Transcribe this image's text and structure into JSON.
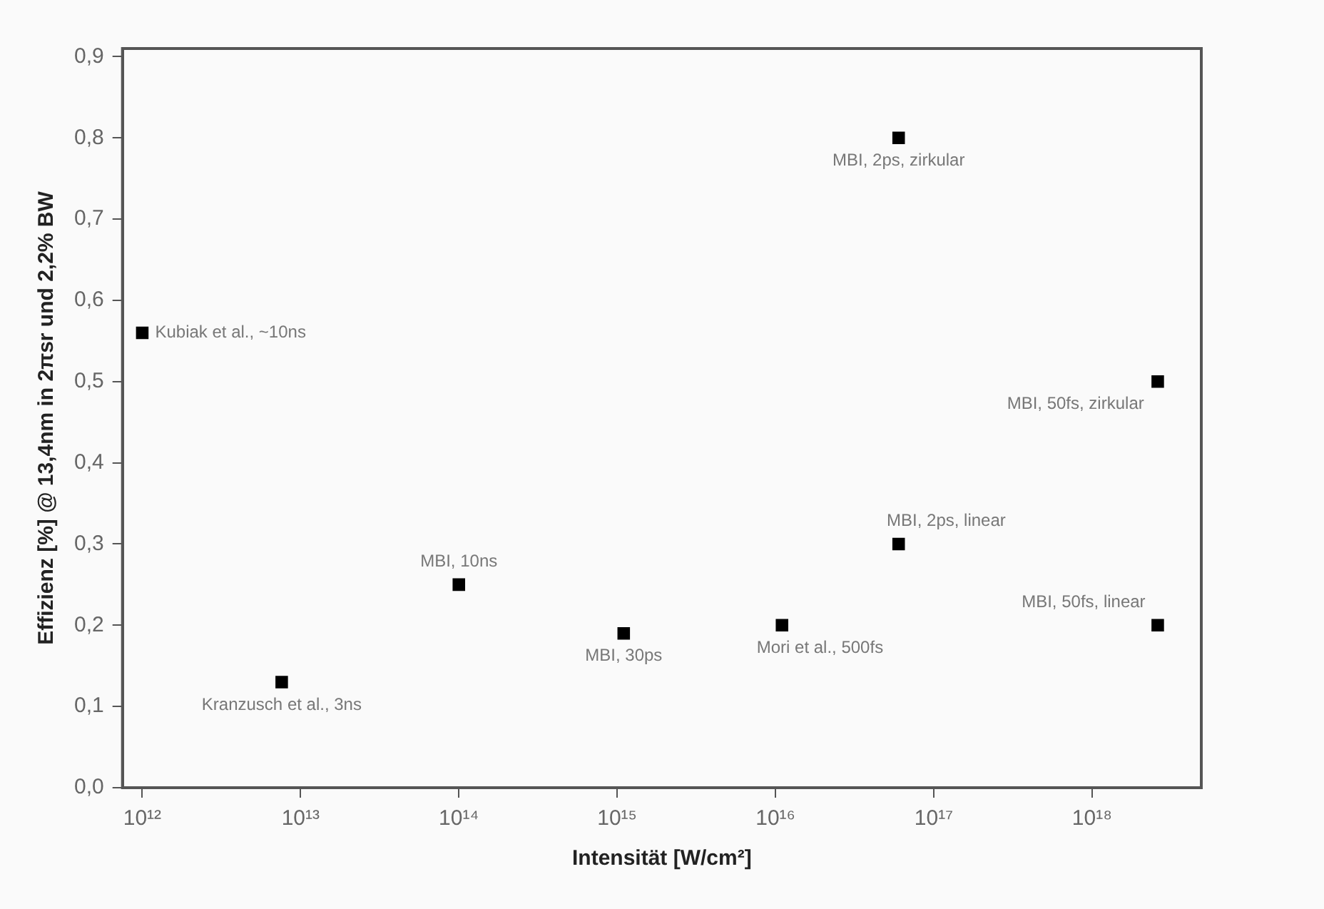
{
  "chart_data": {
    "type": "scatter",
    "xlabel": "Intensität [W/cm²]",
    "ylabel": "Effizienz [%] @ 13,4nm in 2πsr und 2,2% BW",
    "series": [
      {
        "color": "#000000",
        "x": [
          1000000000000.0,
          7600000000000.0,
          100000000000000.0,
          1100000000000000.0,
          1.1e+16,
          6e+16,
          6e+16,
          2.6e+18,
          2.6e+18
        ],
        "values": [
          0.56,
          0.13,
          0.25,
          0.19,
          0.2,
          0.8,
          0.3,
          0.5,
          0.2
        ]
      }
    ],
    "log": "x",
    "xlim": [
      750000000000.0,
      4.9e+18
    ],
    "xticks": [
      {
        "value": 1000000000000.0,
        "label": "10¹²"
      },
      {
        "value": 10000000000000.0,
        "label": "10¹³"
      },
      {
        "value": 100000000000000.0,
        "label": "10¹⁴"
      },
      {
        "value": 1000000000000000.0,
        "label": "10¹⁵"
      },
      {
        "value": 1e+16,
        "label": "10¹⁶"
      },
      {
        "value": 1e+17,
        "label": "10¹⁷"
      },
      {
        "value": 1e+18,
        "label": "10¹⁸"
      }
    ],
    "ylim": [
      0,
      0.91
    ],
    "yticks": [
      {
        "value": 0,
        "label": "0,0"
      },
      {
        "value": 0.1,
        "label": "0,1"
      },
      {
        "value": 0.2,
        "label": "0,2"
      },
      {
        "value": 0.3,
        "label": "0,3"
      },
      {
        "value": 0.4,
        "label": "0,4"
      },
      {
        "value": 0.5,
        "label": "0,5"
      },
      {
        "value": 0.6,
        "label": "0,6"
      },
      {
        "value": 0.7,
        "label": "0,7"
      },
      {
        "value": 0.8,
        "label": "0,8"
      },
      {
        "value": 0.9,
        "label": "0,9"
      }
    ],
    "grid": false,
    "legend": false,
    "marker": "square",
    "annotations": [
      {
        "text": "Kubiak et al., ~10ns",
        "x": 1000000000000.0,
        "y": 0.56
      },
      {
        "text": "Kranzusch et al., 3ns",
        "x": 7600000000000.0,
        "y": 0.13
      },
      {
        "text": "MBI, 10ns",
        "x": 100000000000000.0,
        "y": 0.25
      },
      {
        "text": "MBI, 30ps",
        "x": 1100000000000000.0,
        "y": 0.19
      },
      {
        "text": "Mori et al., 500fs",
        "x": 1.1e+16,
        "y": 0.2
      },
      {
        "text": "MBI, 2ps, zirkular",
        "x": 6e+16,
        "y": 0.8
      },
      {
        "text": "MBI, 50fs, zirkular",
        "x": 2.6e+18,
        "y": 0.5
      },
      {
        "text": "MBI, 2ps, linear",
        "x": 6e+16,
        "y": 0.3
      },
      {
        "text": "MBI, 50fs, linear",
        "x": 2.6e+18,
        "y": 0.2
      }
    ]
  }
}
